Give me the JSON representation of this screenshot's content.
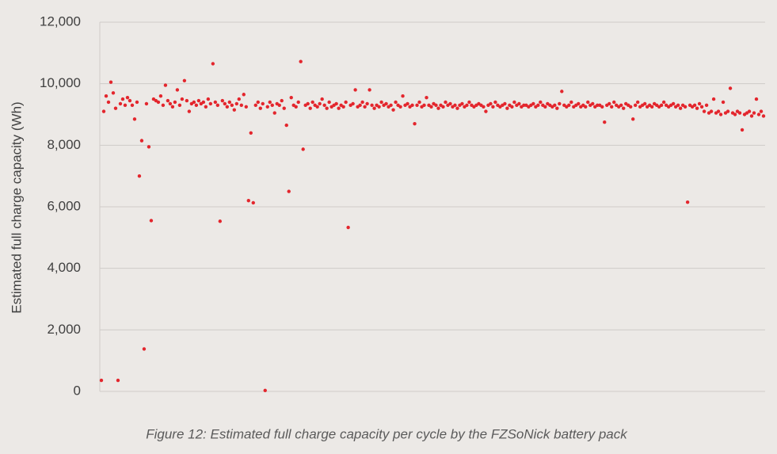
{
  "chart_data": {
    "type": "scatter",
    "title": "Figure 12: Estimated full charge capacity per cycle by the FZSoNick battery pack",
    "y_label": "Estimated full charge capacity (Wh)",
    "color": "#e3262d",
    "grid": true,
    "ylim": [
      0,
      12000
    ],
    "yticks": [
      0,
      {
        "value": 2000,
        "label": "2,000"
      },
      {
        "value": 4000,
        "label": "4,000"
      },
      {
        "value": 6000,
        "label": "6,000"
      },
      {
        "value": 8000,
        "label": "8,000"
      },
      {
        "value": 10000,
        "label": "10,000"
      },
      {
        "value": 12000,
        "label": "12,000"
      }
    ],
    "values": [
      360,
      9100,
      9600,
      9400,
      10050,
      9700,
      9200,
      360,
      9350,
      9500,
      9300,
      9550,
      9450,
      9300,
      8850,
      9400,
      7000,
      8150,
      1380,
      9350,
      7950,
      5550,
      9500,
      9450,
      9400,
      9600,
      9300,
      9950,
      9450,
      9350,
      9250,
      9400,
      9800,
      9300,
      9500,
      10100,
      9450,
      9100,
      9350,
      9400,
      9300,
      9450,
      9350,
      9400,
      9250,
      9500,
      9350,
      10650,
      9400,
      9300,
      5530,
      9450,
      9350,
      9250,
      9400,
      9300,
      9150,
      9350,
      9500,
      9300,
      9650,
      9250,
      6200,
      8400,
      6130,
      9300,
      9400,
      9200,
      9350,
      30,
      9250,
      9400,
      9300,
      9050,
      9350,
      9300,
      9450,
      9200,
      8650,
      6500,
      9550,
      9300,
      9250,
      9400,
      10720,
      7870,
      9300,
      9350,
      9200,
      9400,
      9300,
      9250,
      9350,
      9500,
      9300,
      9200,
      9400,
      9250,
      9300,
      9350,
      9200,
      9300,
      9250,
      9400,
      5330,
      9300,
      9350,
      9800,
      9250,
      9300,
      9400,
      9250,
      9350,
      9800,
      9300,
      9200,
      9300,
      9250,
      9400,
      9300,
      9350,
      9250,
      9300,
      9150,
      9400,
      9300,
      9250,
      9600,
      9300,
      9350,
      9250,
      9300,
      8700,
      9300,
      9400,
      9250,
      9300,
      9550,
      9300,
      9250,
      9350,
      9300,
      9200,
      9300,
      9250,
      9400,
      9300,
      9350,
      9250,
      9300,
      9200,
      9300,
      9350,
      9250,
      9300,
      9400,
      9300,
      9250,
      9300,
      9350,
      9300,
      9250,
      9100,
      9300,
      9350,
      9250,
      9400,
      9300,
      9250,
      9300,
      9350,
      9200,
      9300,
      9250,
      9400,
      9300,
      9350,
      9250,
      9300,
      9300,
      9250,
      9300,
      9350,
      9250,
      9300,
      9400,
      9300,
      9250,
      9350,
      9300,
      9250,
      9300,
      9200,
      9350,
      9750,
      9300,
      9250,
      9300,
      9400,
      9250,
      9300,
      9350,
      9250,
      9300,
      9250,
      9400,
      9300,
      9350,
      9250,
      9300,
      9300,
      9250,
      8750,
      9300,
      9350,
      9250,
      9400,
      9300,
      9250,
      9300,
      9200,
      9350,
      9300,
      9250,
      8850,
      9300,
      9400,
      9250,
      9300,
      9350,
      9250,
      9300,
      9250,
      9350,
      9300,
      9250,
      9300,
      9400,
      9300,
      9250,
      9300,
      9350,
      9250,
      9300,
      9200,
      9300,
      9250,
      6150,
      9300,
      9250,
      9300,
      9200,
      9350,
      9250,
      9100,
      9300,
      9050,
      9100,
      9500,
      9050,
      9100,
      9000,
      9400,
      9050,
      9100,
      9850,
      9050,
      9000,
      9100,
      9050,
      8500,
      9000,
      9050,
      9100,
      8950,
      9050,
      9500,
      9000,
      9100,
      8950
    ]
  }
}
